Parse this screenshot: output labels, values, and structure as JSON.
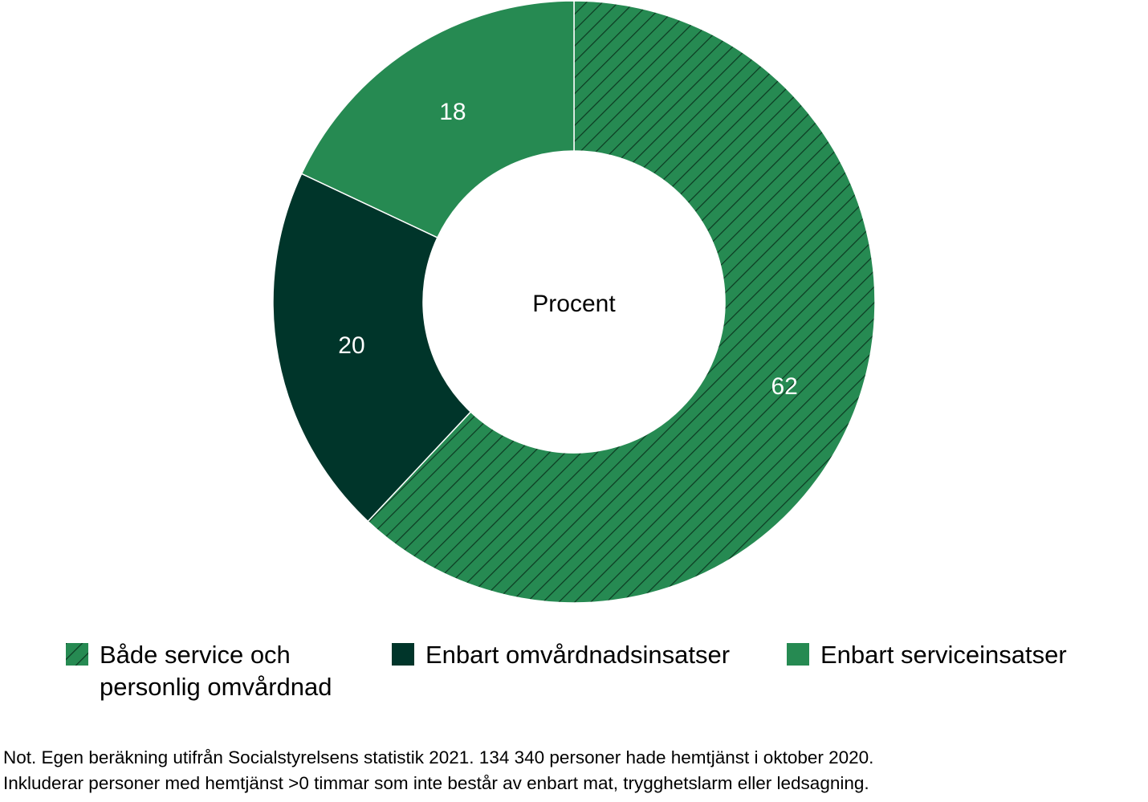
{
  "chart_data": {
    "type": "pie",
    "donut": true,
    "center_label": "Procent",
    "slices": [
      {
        "name": "Både service och\npersonlig omvårdnad",
        "value": 62,
        "label": "62",
        "color": "#268a52",
        "pattern": "hatch"
      },
      {
        "name": "Enbart omvårdnadsinsatser",
        "value": 20,
        "label": "20",
        "color": "#00352a",
        "pattern": "solid"
      },
      {
        "name": "Enbart serviceinsatser",
        "value": 18,
        "label": "18",
        "color": "#268a52",
        "pattern": "solid"
      }
    ],
    "legend_position": "bottom"
  },
  "note": {
    "line1": "Not. Egen beräkning utifrån Socialstyrelsens statistik 2021. 134 340 personer hade hemtjänst i oktober 2020.",
    "line2": "Inkluderar personer med hemtjänst >0 timmar som inte består av enbart mat, trygghetslarm eller ledsagning."
  }
}
